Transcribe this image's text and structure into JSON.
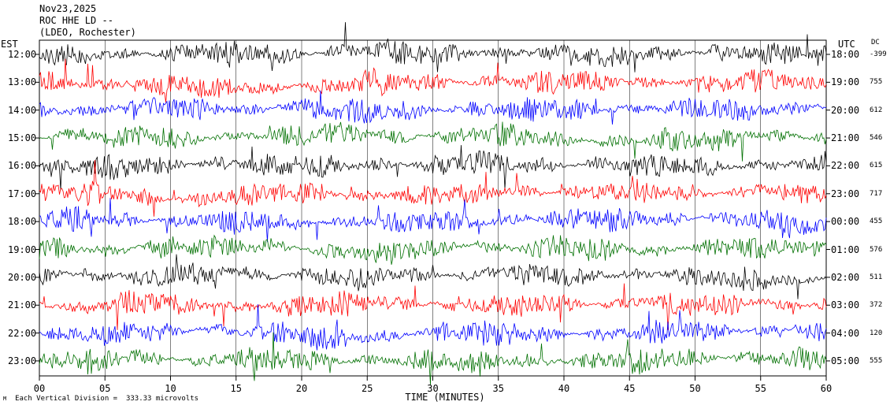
{
  "header": {
    "date": "Nov23,2025",
    "station": "ROC HHE LD --",
    "network": "(LDEO, Rochester)"
  },
  "axis": {
    "left_title": "EST",
    "right_title": "UTC",
    "dc_title": "DC",
    "xlabel": "TIME (MINUTES)",
    "scale_note": "Each Vertical Division =  333.33 microvolts",
    "corner_mark": "M"
  },
  "chart_data": {
    "type": "line",
    "x_range": [
      0,
      60
    ],
    "x_ticks": [
      "00",
      "05",
      "10",
      "15",
      "20",
      "25",
      "30",
      "35",
      "40",
      "45",
      "50",
      "55",
      "60"
    ],
    "grid": "vertical minute lines",
    "line_colors": [
      "#000000",
      "#ff0000",
      "#0000ff",
      "#007000"
    ],
    "rows": [
      {
        "est": "12:00",
        "utc": "18:00",
        "dc": "-399"
      },
      {
        "est": "13:00",
        "utc": "19:00",
        "dc": "755"
      },
      {
        "est": "14:00",
        "utc": "20:00",
        "dc": "612"
      },
      {
        "est": "15:00",
        "utc": "21:00",
        "dc": "546"
      },
      {
        "est": "16:00",
        "utc": "22:00",
        "dc": "615"
      },
      {
        "est": "17:00",
        "utc": "23:00",
        "dc": "717"
      },
      {
        "est": "18:00",
        "utc": "00:00",
        "dc": "455"
      },
      {
        "est": "19:00",
        "utc": "01:00",
        "dc": "576"
      },
      {
        "est": "20:00",
        "utc": "02:00",
        "dc": "511"
      },
      {
        "est": "21:00",
        "utc": "03:00",
        "dc": "372"
      },
      {
        "est": "22:00",
        "utc": "04:00",
        "dc": "120"
      },
      {
        "est": "23:00",
        "utc": "05:00",
        "dc": "555"
      }
    ]
  }
}
